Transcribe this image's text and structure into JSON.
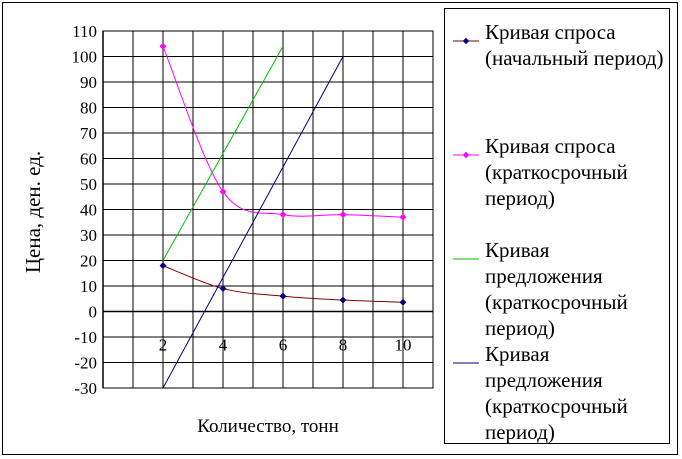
{
  "chart_data": {
    "type": "line",
    "xlabel": "Количество, тонн",
    "ylabel": "Цена, ден. ед.",
    "x_ticks": [
      2,
      4,
      6,
      8,
      10
    ],
    "y_ticks": [
      -30,
      -20,
      -10,
      0,
      10,
      20,
      30,
      40,
      50,
      60,
      70,
      80,
      90,
      100,
      110
    ],
    "xlim": [
      0,
      11
    ],
    "ylim": [
      -30,
      110
    ],
    "grid": true,
    "legend_position": "right",
    "series": [
      {
        "name": "Кривая спроса (начальный период)",
        "color": "#800000",
        "marker_color": "#000080",
        "marker": "diamond",
        "smooth": true,
        "x": [
          2,
          4,
          6,
          8,
          10
        ],
        "y": [
          18,
          9,
          6,
          4.5,
          3.6
        ]
      },
      {
        "name": "Кривая спроса (краткосрочный период)",
        "color": "#ff00ff",
        "marker_color": "#ff00ff",
        "marker": "diamond",
        "smooth": true,
        "x": [
          2,
          4,
          6,
          8,
          10
        ],
        "y": [
          104,
          47,
          38,
          38,
          37
        ]
      },
      {
        "name": "Кривая предложения (краткосрочный период)",
        "color": "#00c000",
        "marker": "none",
        "smooth": false,
        "x": [
          2,
          6
        ],
        "y": [
          20,
          104
        ]
      },
      {
        "name": "Кривая предложения (краткосрочный период)",
        "color": "#000080",
        "marker": "none",
        "smooth": false,
        "x": [
          2,
          8
        ],
        "y": [
          -30,
          100
        ]
      }
    ]
  }
}
